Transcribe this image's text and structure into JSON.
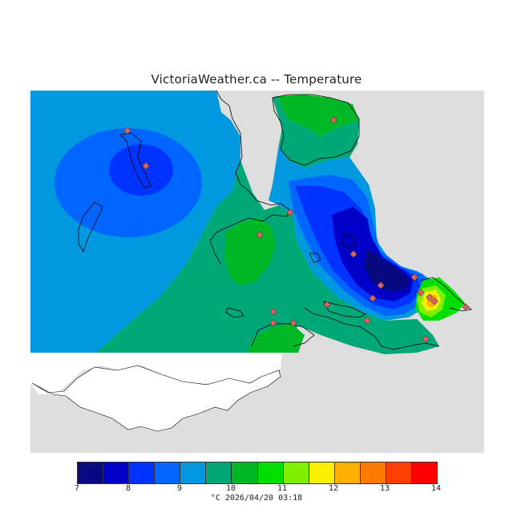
{
  "header": {
    "title": "VictoriaWeather.ca -- Temperature"
  },
  "legend": {
    "ticks": [
      "7",
      "8",
      "9",
      "10",
      "11",
      "12",
      "13",
      "14"
    ],
    "colors": [
      "#0a0a80",
      "#0000c8",
      "#0033ff",
      "#0066ff",
      "#0099e0",
      "#00a878",
      "#00b826",
      "#00e000",
      "#80f000",
      "#f8f000",
      "#ffb000",
      "#ff7a00",
      "#ff4000",
      "#ff0000"
    ]
  },
  "footer": {
    "text": "°C 2026/04/20 03:18"
  },
  "map": {
    "land_color": "#dedede",
    "water_color": "#ffffff",
    "contour_colors": {
      "c9_10": "#0099e0",
      "c10_105": "#00a878",
      "c105_11": "#00b826",
      "c85_9": "#0066ff",
      "c8_85": "#0033ff",
      "c75_8": "#0000c8",
      "c7_75": "#0a0a80",
      "warm_11_12": "#80f000",
      "warm_12_13": "#f8f000",
      "warm_13": "#ffb000"
    },
    "station_marker_color": "#cc3333",
    "station_count": 19
  }
}
